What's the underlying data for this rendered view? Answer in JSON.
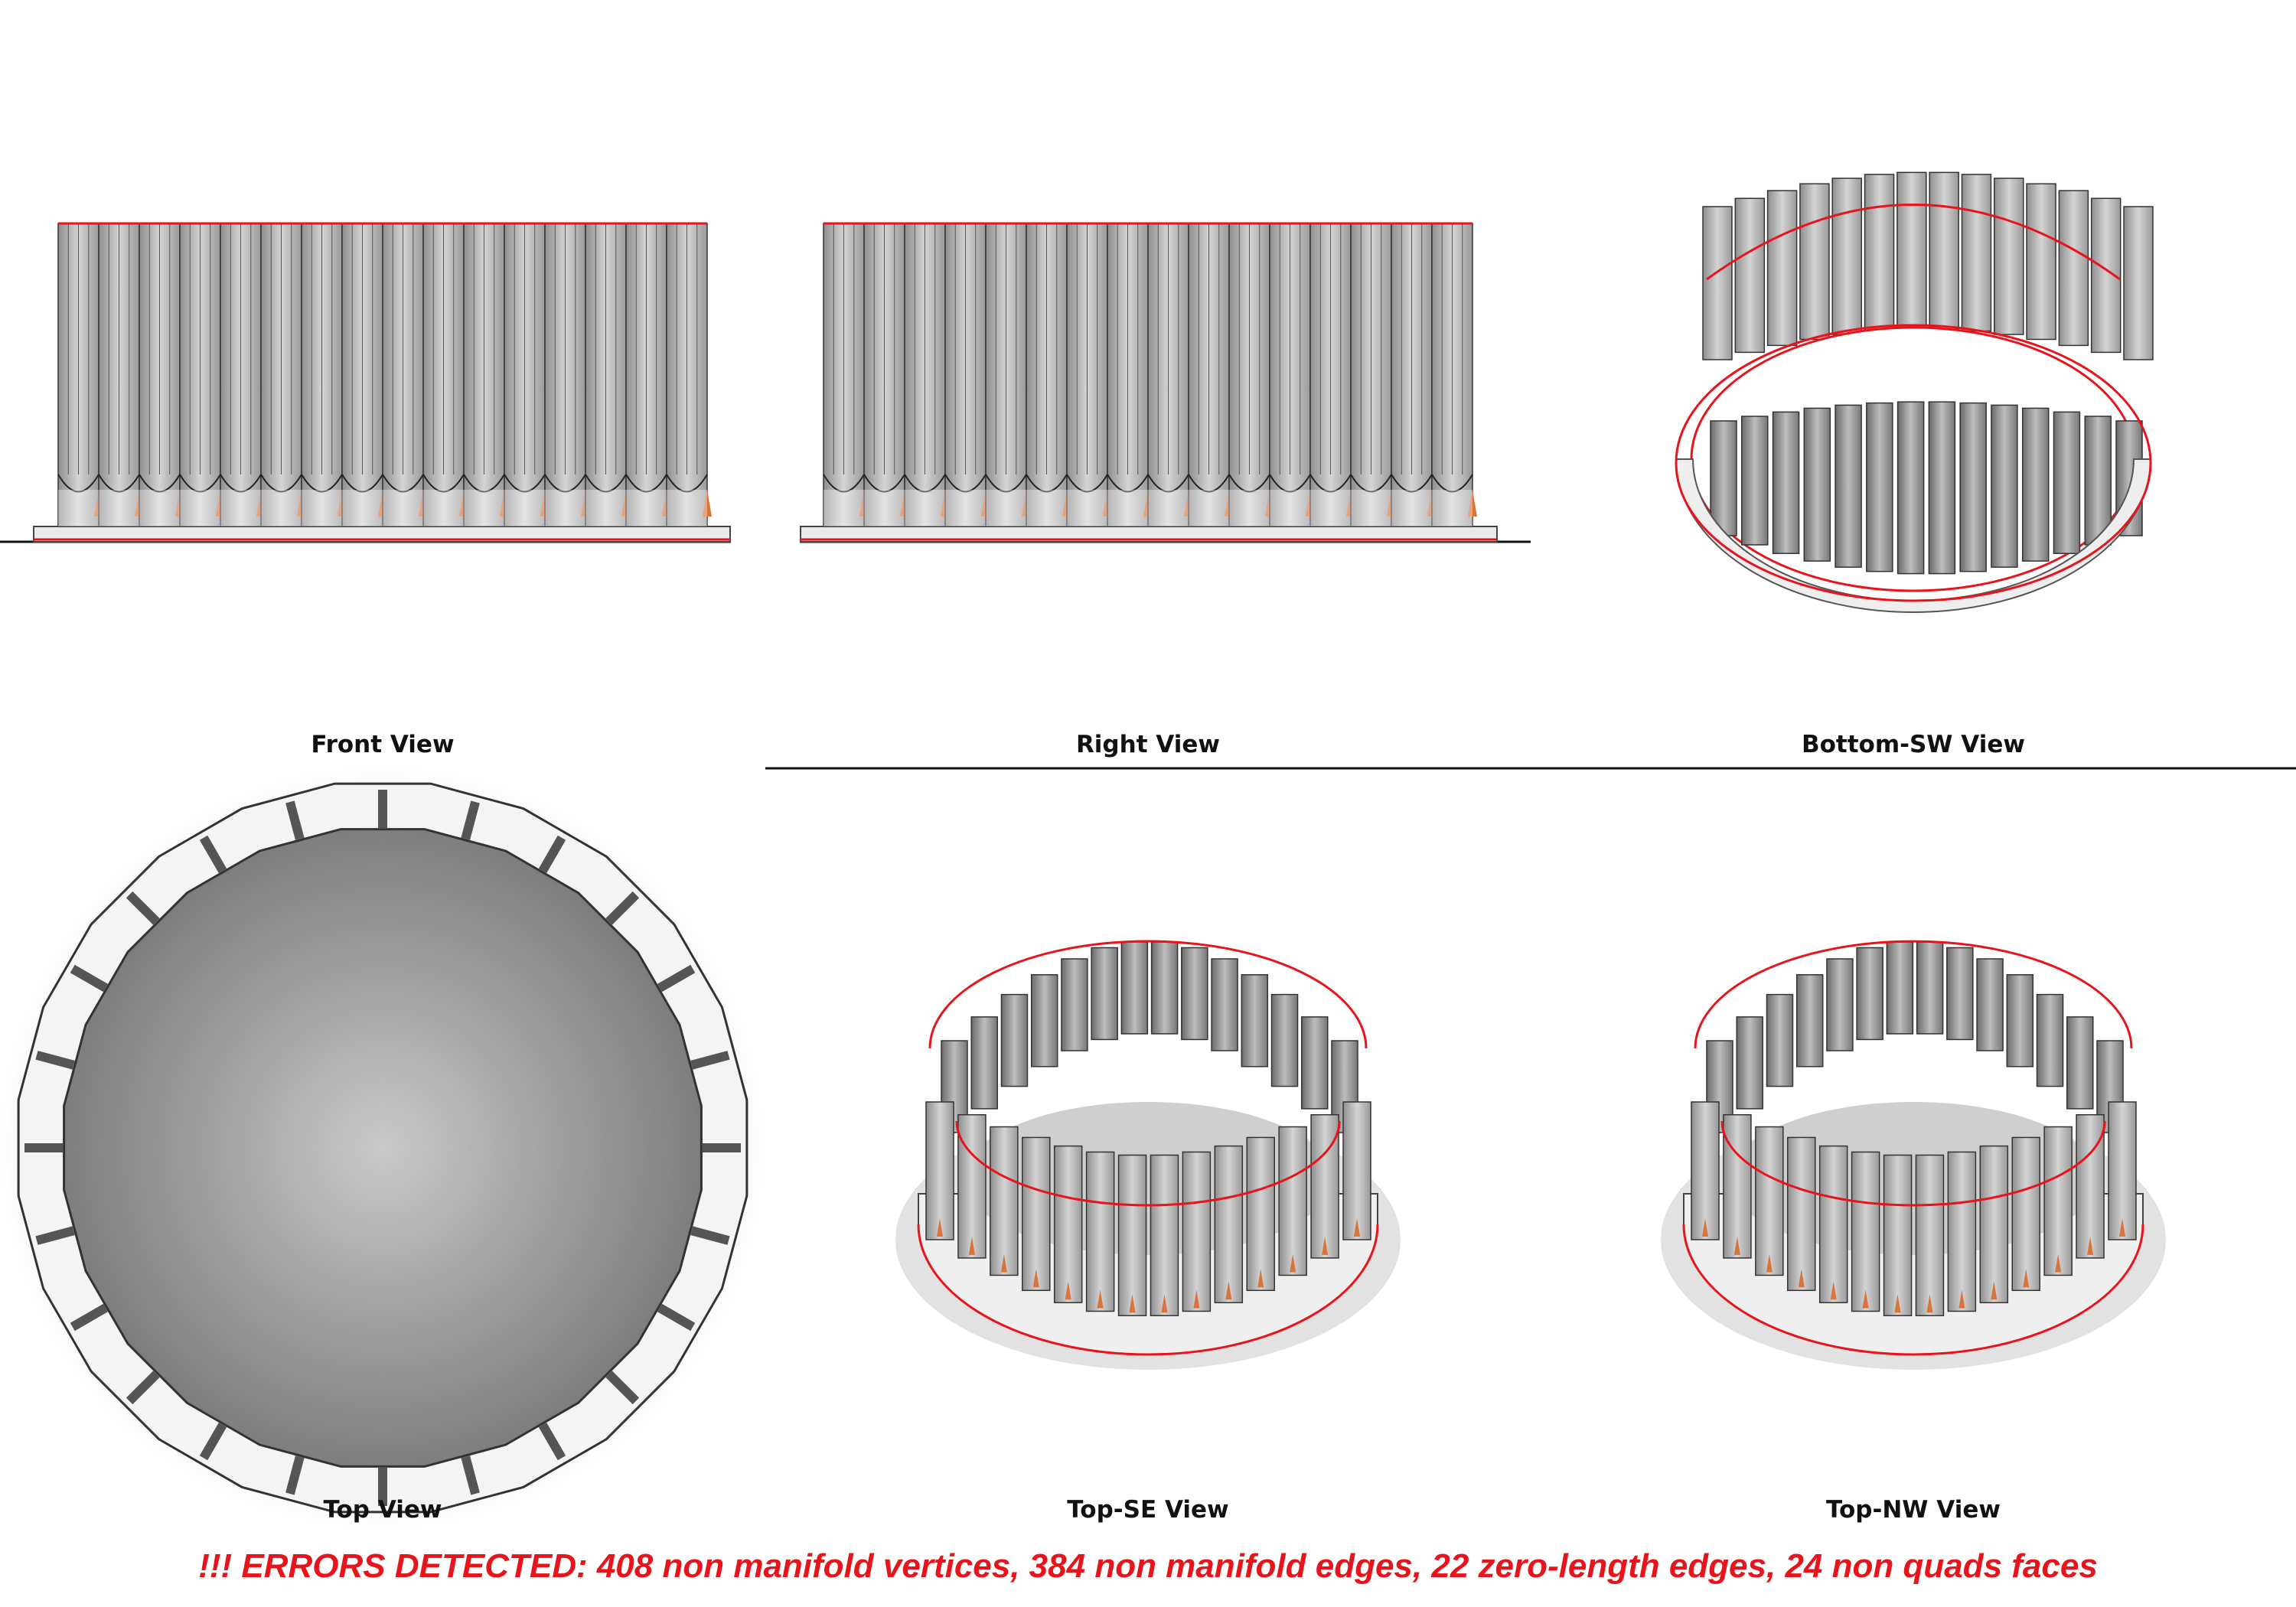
{
  "views": {
    "front": "Front View",
    "right": "Right View",
    "bottom_sw": "Bottom-SW View",
    "top": "Top View",
    "top_se": "Top-SE View",
    "top_nw": "Top-NW View"
  },
  "error_message": "!!! ERRORS DETECTED: 408 non manifold vertices, 384 non manifold edges, 22 zero-length edges, 24 non quads faces",
  "colors": {
    "error_red": "#e8141c",
    "edge_black": "#111111",
    "mesh_gray": "#b9b9b9",
    "notch_orange": "#d9743a"
  }
}
